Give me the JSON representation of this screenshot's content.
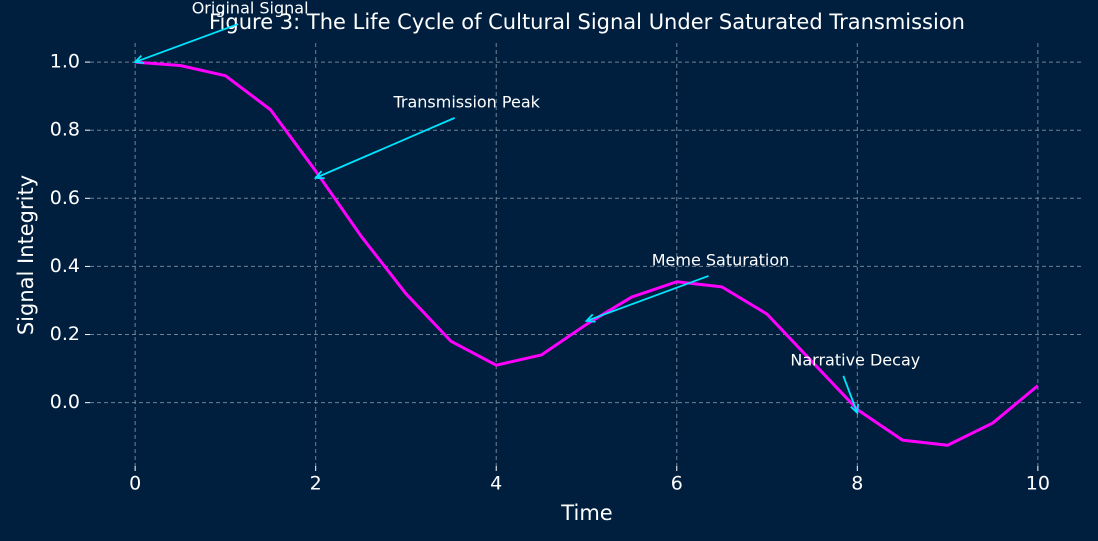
{
  "chart_data": {
    "type": "line",
    "title": "Figure 3: The Life Cycle of Cultural Signal Under Saturated Transmission",
    "x_label": "Time",
    "y_label": "Signal Integrity",
    "x": [
      0,
      0.5,
      1,
      1.5,
      2,
      2.5,
      3,
      3.5,
      4,
      4.5,
      5,
      5.5,
      6,
      6.5,
      7,
      7.5,
      8,
      8.5,
      9,
      9.5,
      10
    ],
    "series": [
      {
        "color": "#ff00ff",
        "values": [
          1.0,
          0.99,
          0.96,
          0.86,
          0.68,
          0.49,
          0.32,
          0.18,
          0.11,
          0.14,
          0.23,
          0.31,
          0.355,
          0.34,
          0.26,
          0.12,
          -0.02,
          -0.11,
          -0.125,
          -0.06,
          0.05
        ]
      }
    ],
    "xlim": [
      -0.5,
      10.5
    ],
    "ylim": [
      -0.186,
      1.056
    ],
    "xticks": [
      0,
      2,
      4,
      6,
      8,
      10
    ],
    "yticks": [
      {
        "value": 0,
        "label": "0.0"
      },
      0.2,
      0.4,
      0.6,
      0.8,
      {
        "value": 1,
        "label": "1.0"
      }
    ],
    "grid": true,
    "annotation_color": "#00e5ff",
    "annotations": [
      {
        "text": "Original Signal",
        "x": 0,
        "y": 1.0
      },
      {
        "text": "Transmission Peak",
        "x": 2,
        "y": 0.66
      },
      {
        "text": "Meme Saturation",
        "x": 5,
        "y": 0.24
      },
      {
        "text": "Narrative Decay",
        "x": 8,
        "y": -0.03
      }
    ]
  }
}
